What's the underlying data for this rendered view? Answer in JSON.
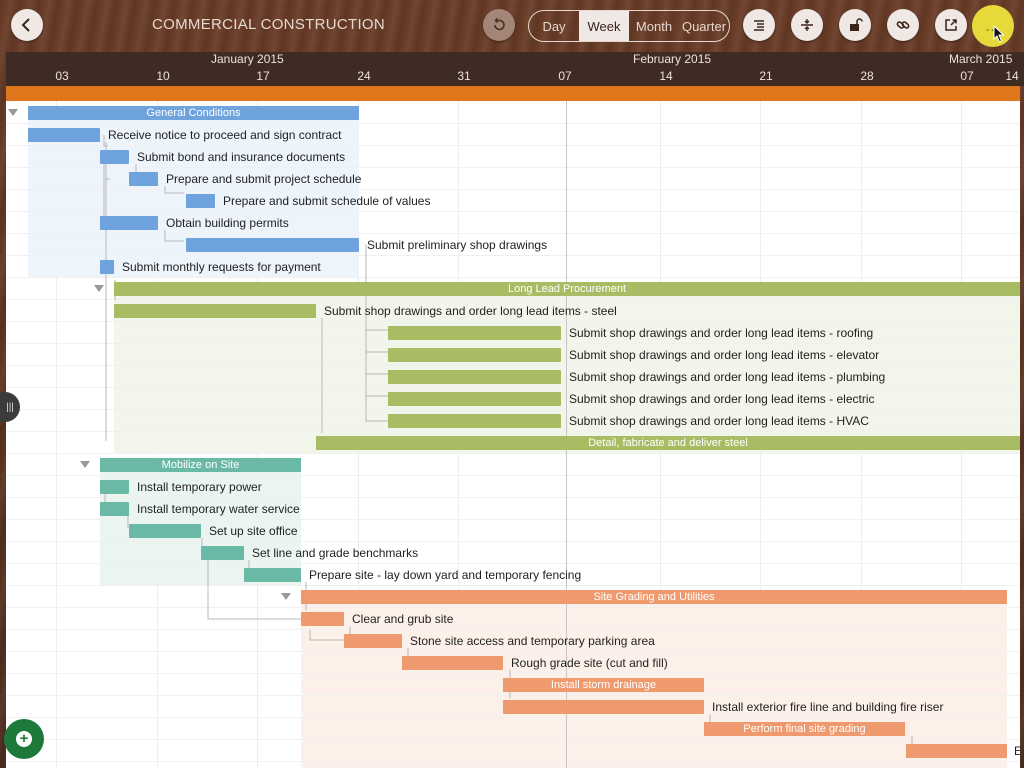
{
  "app": {
    "title": "COMMERCIAL CONSTRUCTION"
  },
  "toolbar": {
    "back_icon": "chevron-left-icon",
    "undo_icon": "undo-icon",
    "scale": {
      "options": [
        "Day",
        "Week",
        "Month",
        "Quarter"
      ],
      "selected": "Week"
    },
    "buttons": [
      "indent-icon",
      "split-icon",
      "lock-icon",
      "link-icon",
      "share-icon",
      "more-icon"
    ],
    "more_label": "..."
  },
  "timeline": {
    "months": [
      "January 2015",
      "February 2015",
      "March 2015"
    ],
    "weeks": [
      "03",
      "10",
      "17",
      "24",
      "31",
      "07",
      "14",
      "21",
      "28",
      "07",
      "14"
    ]
  },
  "colors": {
    "general": "#6fa3de",
    "procurement": "#a8bd63",
    "mobilize": "#6ab8a6",
    "sitework": "#ef9a6e",
    "accent": "#e0761b"
  },
  "tasks": {
    "general_conditions": "General Conditions",
    "receive_notice": "Receive notice to proceed and sign contract",
    "submit_bond": "Submit bond and insurance documents",
    "project_schedule": "Prepare and submit project schedule",
    "schedule_values": "Prepare and submit schedule of values",
    "building_permits": "Obtain building permits",
    "preliminary_drawings": "Submit preliminary shop drawings",
    "monthly_requests": "Submit monthly requests for payment",
    "long_lead": "Long Lead Procurement",
    "steel": "Submit shop drawings and order long lead items - steel",
    "roofing": "Submit shop drawings and order long lead items - roofing",
    "elevator": "Submit shop drawings and order long lead items - elevator",
    "plumbing": "Submit shop drawings and order long lead items - plumbing",
    "electric": "Submit shop drawings and order long lead items - electric",
    "hvac": "Submit shop drawings and order long lead items - HVAC",
    "detail_steel": "Detail, fabricate and deliver steel",
    "mobilize": "Mobilize on Site",
    "temp_power": "Install temporary power",
    "temp_water": "Install temporary water service",
    "site_office": "Set up site office",
    "benchmarks": "Set line and grade benchmarks",
    "prepare_site": "Prepare site - lay down yard and temporary fencing",
    "site_grading": "Site Grading and Utilities",
    "clear_grub": "Clear and grub site",
    "stone_access": "Stone site access and temporary parking area",
    "rough_grade": "Rough grade site (cut and fill)",
    "storm_drainage": "Install storm drainage",
    "fire_line": "Install exterior fire line and building fire riser",
    "final_grading": "Perform final site grading",
    "last_partial": "E"
  },
  "side_handle_label": "|||",
  "add_label": "+"
}
